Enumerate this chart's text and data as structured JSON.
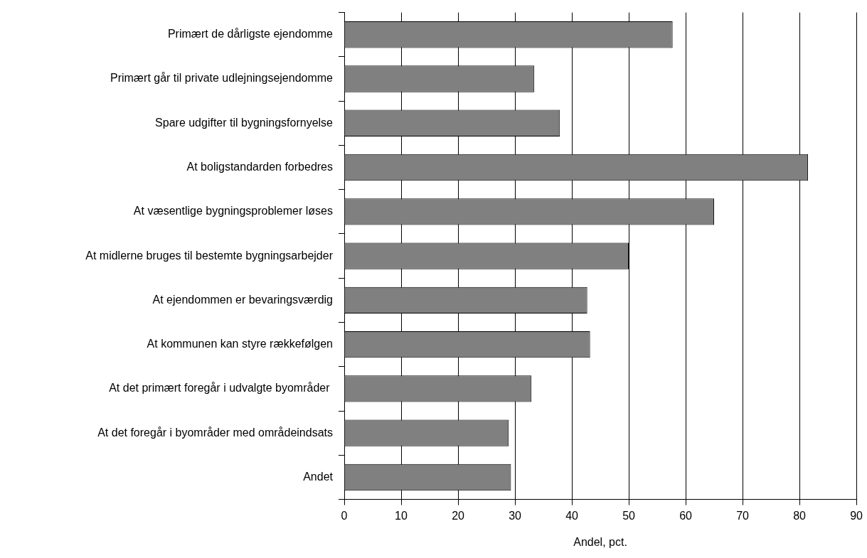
{
  "chart_data": {
    "type": "bar",
    "orientation": "horizontal",
    "categories": [
      "Primært de dårligste ejendomme",
      "Primært går til private udlejningsejendomme",
      "Spare udgifter til bygningsfornyelse",
      "At boligstandarden forbedres",
      "At væsentlige bygningsproblemer løses",
      "At midlerne bruges til bestemte bygningsarbejder",
      "At ejendommen er bevaringsværdig",
      "At kommunen kan styre rækkefølgen",
      "At det primært foregår i udvalgte byområder ",
      "At det foregår i byområder med områdeindsats",
      "Andet"
    ],
    "values": [
      57.7,
      33.4,
      37.9,
      81.5,
      65.0,
      50.0,
      42.7,
      43.2,
      32.9,
      28.9,
      29.3
    ],
    "color": "#808080",
    "xlabel": "Andel, pct.",
    "xlim": [
      0,
      90
    ],
    "xticks": [
      0,
      10,
      20,
      30,
      40,
      50,
      60,
      70,
      80,
      90
    ],
    "grid": "x"
  }
}
